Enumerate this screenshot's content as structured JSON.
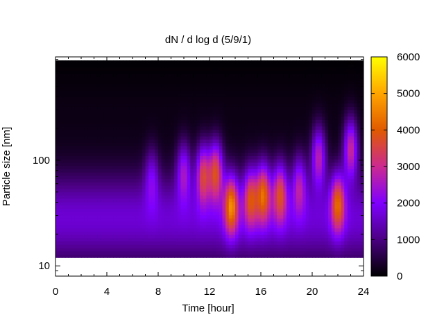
{
  "chart_data": {
    "type": "heatmap",
    "title": "dN / d log d (5/9/1)",
    "xlabel": "Time [hour]",
    "ylabel": "Particle size [nm]",
    "xlim": [
      0,
      24
    ],
    "x_ticks": [
      0,
      4,
      8,
      12,
      16,
      20,
      24
    ],
    "x_tick_labels": [
      "0",
      "4",
      "8",
      "12",
      "16",
      "20",
      "24"
    ],
    "y_scale": "log",
    "ylim": [
      8,
      950
    ],
    "data_size_range": [
      12,
      880
    ],
    "y_ticks": [
      10,
      100
    ],
    "y_tick_labels": [
      "10",
      "100"
    ],
    "colorbar": {
      "range": [
        0,
        6000
      ],
      "ticks": [
        0,
        1000,
        2000,
        3000,
        4000,
        5000,
        6000
      ],
      "tick_labels": [
        "0",
        "1000",
        "2000",
        "3000",
        "4000",
        "5000",
        "6000"
      ],
      "palette": [
        "#000000",
        "#4b0082",
        "#7f00ff",
        "#cc2a90",
        "#e05a00",
        "#ffa500",
        "#ffff00"
      ]
    },
    "features": [
      {
        "time": 7.5,
        "size_nm": 70,
        "value": 2800
      },
      {
        "time": 10,
        "size_nm": 80,
        "value": 3400
      },
      {
        "time": 11.5,
        "size_nm": 75,
        "value": 4300
      },
      {
        "time": 12.5,
        "size_nm": 80,
        "value": 4600
      },
      {
        "time": 13.7,
        "size_nm": 38,
        "value": 4700
      },
      {
        "time": 15.2,
        "size_nm": 45,
        "value": 4000
      },
      {
        "time": 16.2,
        "size_nm": 50,
        "value": 4500
      },
      {
        "time": 17.5,
        "size_nm": 50,
        "value": 4100
      },
      {
        "time": 19,
        "size_nm": 60,
        "value": 3300
      },
      {
        "time": 20.5,
        "size_nm": 110,
        "value": 3900
      },
      {
        "time": 22,
        "size_nm": 40,
        "value": 4300
      },
      {
        "time": 23,
        "size_nm": 130,
        "value": 4200
      }
    ]
  }
}
